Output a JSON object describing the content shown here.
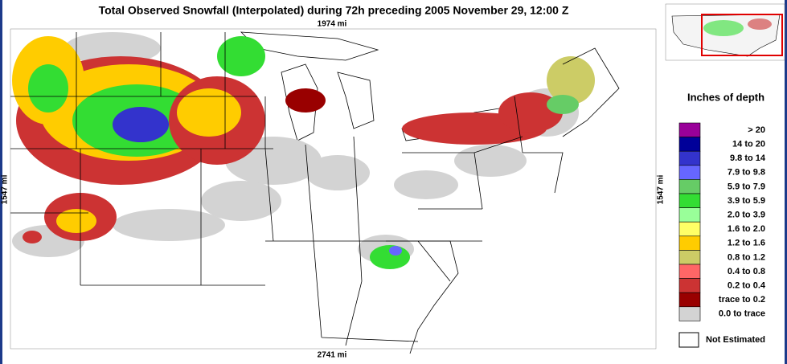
{
  "header": {
    "title": "Total Observed Snowfall (Interpolated) during 72h preceding 2005 November 29, 12:00 Z"
  },
  "map": {
    "top_distance": "1974 mi",
    "bottom_distance": "2741 mi",
    "left_distance": "1547 mi",
    "right_distance": "1547 mi"
  },
  "legend": {
    "title": "Inches of depth",
    "entries": [
      {
        "label": ">   20",
        "color": "#990099"
      },
      {
        "label": "14 to  20",
        "color": "#000099"
      },
      {
        "label": "9.8 to  14",
        "color": "#3333cc"
      },
      {
        "label": "7.9 to  9.8",
        "color": "#6666ff"
      },
      {
        "label": "5.9 to  7.9",
        "color": "#66cc66"
      },
      {
        "label": "3.9 to  5.9",
        "color": "#33dd33"
      },
      {
        "label": "2.0 to  3.9",
        "color": "#99ff99"
      },
      {
        "label": "1.6 to  2.0",
        "color": "#ffff66"
      },
      {
        "label": "1.2 to  1.6",
        "color": "#ffcc00"
      },
      {
        "label": "0.8 to  1.2",
        "color": "#cccc66"
      },
      {
        "label": "0.4 to  0.8",
        "color": "#ff6666"
      },
      {
        "label": "0.2 to  0.4",
        "color": "#cc3333"
      },
      {
        "label": "trace to  0.2",
        "color": "#990000"
      },
      {
        "label": "0.0 to trace",
        "color": "#d3d3d3"
      }
    ],
    "not_estimated": {
      "label": "Not Estimated",
      "color": "#ffffff"
    }
  }
}
